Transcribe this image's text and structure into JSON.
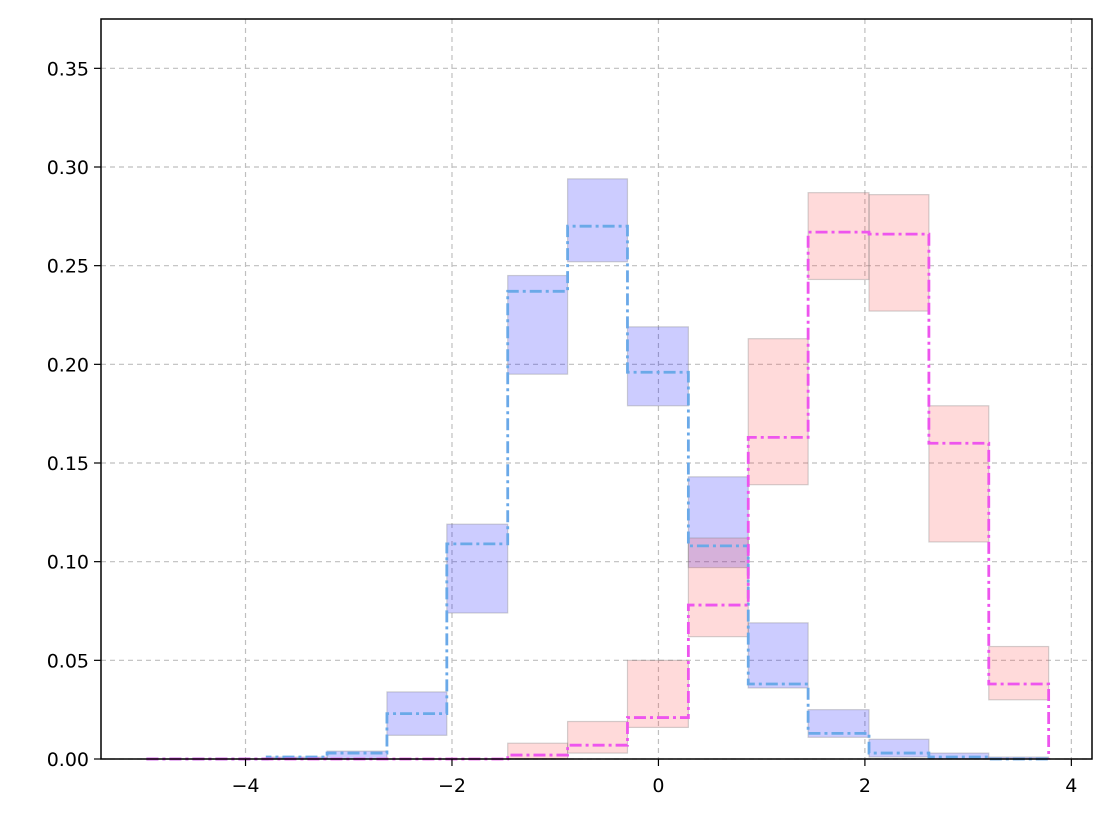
{
  "chart_data": {
    "type": "bar",
    "title": "",
    "xlabel": "",
    "ylabel": "",
    "xlim": [
      -5.4,
      4.2
    ],
    "ylim": [
      0,
      0.375
    ],
    "grid": true,
    "xticks": [
      -4,
      -2,
      0,
      2,
      4
    ],
    "xtick_labels": [
      "−4",
      "−2",
      "0",
      "2",
      "4"
    ],
    "yticks": [
      0.0,
      0.05,
      0.1,
      0.15,
      0.2,
      0.25,
      0.3,
      0.35
    ],
    "ytick_labels": [
      "0.00",
      "0.05",
      "0.10",
      "0.15",
      "0.20",
      "0.25",
      "0.30",
      "0.35"
    ],
    "series": [
      {
        "color": "#6aa9e8",
        "band_color": "#0000ff",
        "bin_edges": [
          -4.96,
          -4.38,
          -3.79,
          -3.21,
          -2.63,
          -2.05,
          -1.46,
          -0.88,
          -0.3,
          0.29,
          0.87,
          1.45,
          2.04,
          2.62,
          3.2,
          3.78
        ],
        "values": [
          0.0,
          0.0,
          0.001,
          0.003,
          0.023,
          0.109,
          0.237,
          0.27,
          0.196,
          0.108,
          0.038,
          0.013,
          0.003,
          0.001,
          0.0
        ],
        "lower": [
          0.0,
          0.0,
          0.0,
          0.0,
          0.012,
          0.074,
          0.195,
          0.252,
          0.179,
          0.097,
          0.036,
          0.011,
          0.001,
          0.0,
          0.0
        ],
        "upper": [
          0.0,
          0.0,
          0.001,
          0.004,
          0.034,
          0.119,
          0.245,
          0.294,
          0.219,
          0.143,
          0.069,
          0.025,
          0.01,
          0.003,
          0.001
        ]
      },
      {
        "color": "#ee55ee",
        "band_color": "#ff4444",
        "bin_edges": [
          -4.96,
          -4.38,
          -3.79,
          -3.21,
          -2.63,
          -2.05,
          -1.46,
          -0.88,
          -0.3,
          0.29,
          0.87,
          1.45,
          2.04,
          2.62,
          3.2,
          3.78
        ],
        "values": [
          0.0,
          0.0,
          0.0,
          0.0,
          0.0,
          0.0,
          0.002,
          0.007,
          0.021,
          0.078,
          0.163,
          0.267,
          0.266,
          0.16,
          0.038
        ],
        "lower": [
          0.0,
          0.0,
          0.0,
          0.0,
          0.0,
          0.0,
          0.0,
          0.003,
          0.016,
          0.062,
          0.139,
          0.243,
          0.227,
          0.11,
          0.03
        ],
        "upper": [
          0.0,
          0.0,
          0.0,
          0.0,
          0.0,
          0.0,
          0.008,
          0.019,
          0.05,
          0.112,
          0.213,
          0.287,
          0.286,
          0.179,
          0.057
        ]
      }
    ]
  }
}
